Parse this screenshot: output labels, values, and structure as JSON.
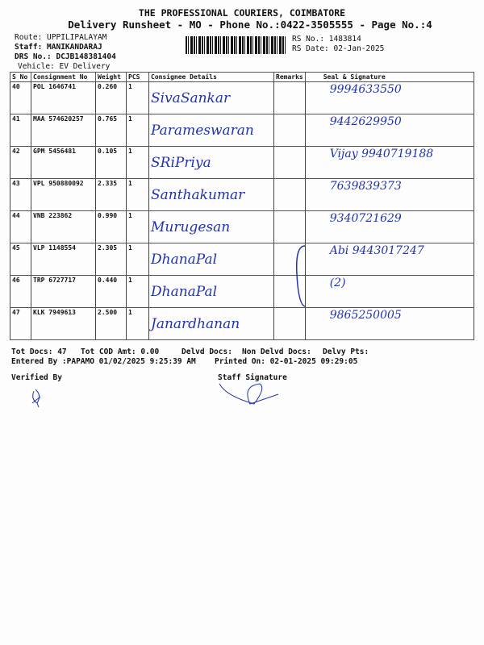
{
  "header": {
    "company": "THE PROFESSIONAL COURIERS, COIMBATORE",
    "title": "Delivery Runsheet - MO - Phone No.:0422-3505555 - Page No.:4",
    "route": "Route: UPPILIPALAYAM",
    "staff": "Staff: MANIKANDARAJ",
    "drs": "DRS No.: DCJB148381404",
    "vehicle": "Vehicle: EV Delivery",
    "rs_no": "RS No.: 1483814",
    "rs_date": "RS Date: 02-Jan-2025"
  },
  "table": {
    "columns": [
      "S No",
      "Consignment No",
      "Weight",
      "PCS",
      "Consignee Details",
      "Remarks",
      "Seal & Signature"
    ],
    "rows": [
      {
        "sno": "40",
        "cn": "POL 1646741",
        "weight": "0.260",
        "pcs": "1",
        "consignee": "SivaSankar",
        "signature": "9994633550"
      },
      {
        "sno": "41",
        "cn": "MAA 574620257",
        "weight": "0.765",
        "pcs": "1",
        "consignee": "Parameswaran",
        "signature": "9442629950"
      },
      {
        "sno": "42",
        "cn": "GPM 5456481",
        "weight": "0.105",
        "pcs": "1",
        "consignee": "SRiPriya",
        "signature": "Vijay 9940719188"
      },
      {
        "sno": "43",
        "cn": "VPL 950880092",
        "weight": "2.335",
        "pcs": "1",
        "consignee": "Santhakumar",
        "signature": "7639839373"
      },
      {
        "sno": "44",
        "cn": "VNB 223862",
        "weight": "0.990",
        "pcs": "1",
        "consignee": "Murugesan",
        "signature": "9340721629"
      },
      {
        "sno": "45",
        "cn": "VLP 1148554",
        "weight": "2.305",
        "pcs": "1",
        "consignee": "DhanaPal",
        "signature": "Abi 9443017247"
      },
      {
        "sno": "46",
        "cn": "TRP 6727717",
        "weight": "0.440",
        "pcs": "1",
        "consignee": "DhanaPal",
        "signature": "(2)"
      },
      {
        "sno": "47",
        "cn": "KLK 7949613",
        "weight": "2.500",
        "pcs": "1",
        "consignee": "Janardhanan",
        "signature": "9865250005"
      }
    ]
  },
  "footer": {
    "tot_docs": "Tot Docs:  47",
    "tot_cod": "Tot COD Amt:    0.00",
    "delvd": "Delvd Docs:",
    "non_delvd": "Non Delvd Docs:",
    "delvy_pts": "Delvy Pts:",
    "entered": "Entered By :PAPAMO 01/02/2025 9:25:39 AM",
    "printed": "Printed On: 02-01-2025 09:29:05",
    "verified": "Verified By",
    "staff_sig": "Staff Signature"
  }
}
